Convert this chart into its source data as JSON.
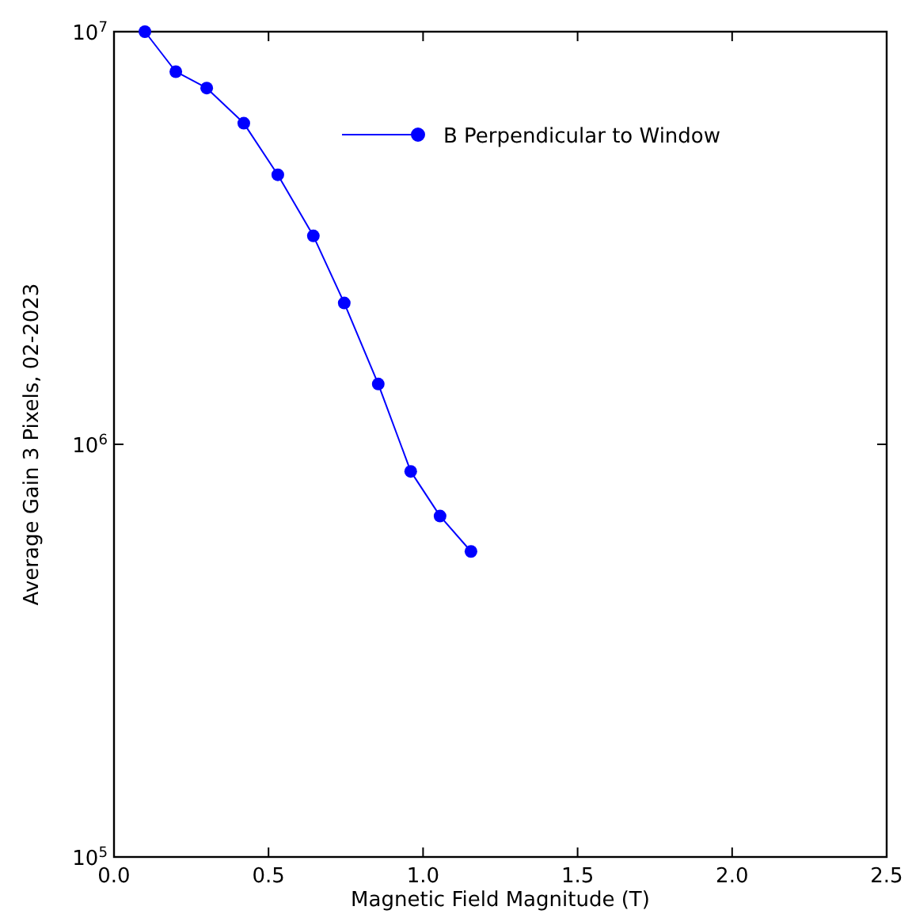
{
  "chart_data": {
    "type": "line",
    "xlabel": "Magnetic Field Magnitude (T)",
    "ylabel": "Average Gain 3 Pixels, 02-2023",
    "log": "y",
    "xlim": [
      0,
      2.5
    ],
    "xticks": [
      {
        "value": 0,
        "label": "0.0"
      },
      0.5,
      {
        "value": 1,
        "label": "1.0"
      },
      1.5,
      {
        "value": 2,
        "label": "2.0"
      },
      2.5
    ],
    "ylim": [
      100000,
      10000000
    ],
    "yticks": [
      {
        "value": 100000,
        "label": "10$^{5}$"
      },
      {
        "value": 1000000,
        "label": "10$^{6}$"
      },
      {
        "value": 10000000,
        "label": "10$^{7}$"
      }
    ],
    "grid": false,
    "legend": "top right",
    "marker": "circle",
    "line_style": "solid",
    "x": [
      0.1,
      0.2,
      0.3,
      0.42,
      0.53,
      0.645,
      0.745,
      0.855,
      0.96,
      1.055,
      1.155
    ],
    "series": [
      {
        "name": "B Perpendicular to Window",
        "color": "#0000ff",
        "values": [
          10000000,
          8000000,
          7300000,
          6000000,
          4500000,
          3200000,
          2200000,
          1400000,
          860000,
          670000,
          550000
        ]
      }
    ]
  }
}
